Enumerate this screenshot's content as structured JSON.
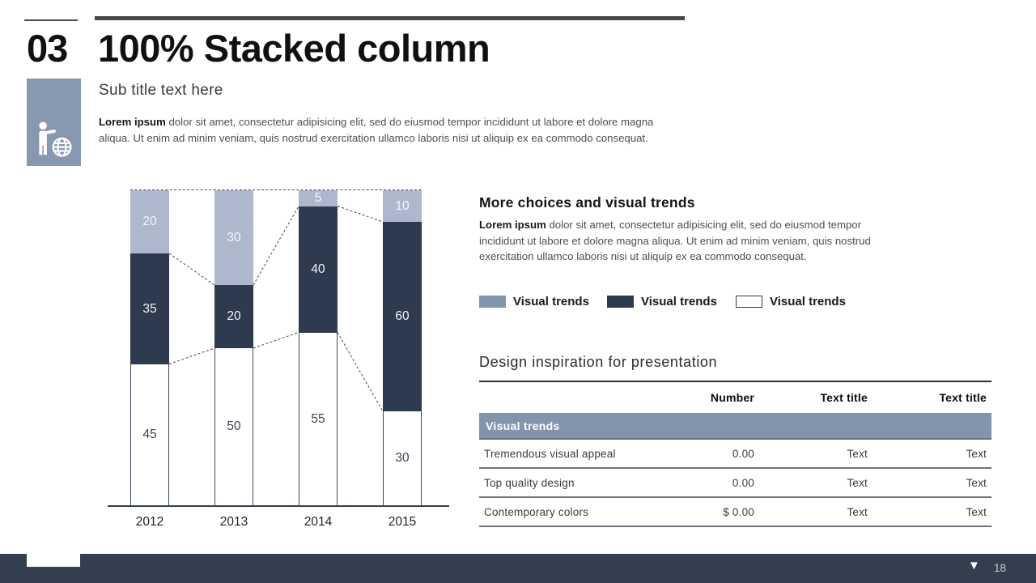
{
  "slide": {
    "number": "03",
    "title": "100% Stacked column",
    "subtitle": "Sub title text here",
    "intro_lead": "Lorem ipsum",
    "intro_text": " dolor sit amet, consectetur adipisicing elit, sed do eiusmod tempor incididunt ut labore et dolore magna aliqua. Ut enim ad minim veniam, quis nostrud exercitation ullamco laboris nisi ut aliquip ex ea commodo consequat.",
    "icon_box_color": "#8797af"
  },
  "right": {
    "section1_title": "More choices and visual trends",
    "section1_lead": "Lorem ipsum",
    "section1_text": " dolor sit amet, consectetur adipisicing elit, sed do eiusmod tempor incididunt ut labore et dolore magna aliqua. Ut enim ad minim veniam, quis nostrud exercitation ullamco laboris nisi ut aliquip ex ea commodo consequat.",
    "legend": [
      {
        "label": "Visual trends",
        "color": "#8295ac"
      },
      {
        "label": "Visual trends",
        "color": "#2e3a4d"
      },
      {
        "label": "Visual trends",
        "color": "#ffffff",
        "border": "#2e3a4d"
      }
    ],
    "section2_title": "Design inspiration for presentation",
    "table": {
      "headers": [
        "",
        "Number",
        "Text title",
        "Text title"
      ],
      "band_label": "Visual trends",
      "band_color": "#8295ac",
      "rows": [
        [
          "Tremendous visual appeal",
          "0.00",
          "Text",
          "Text"
        ],
        [
          "Top quality design",
          "0.00",
          "Text",
          "Text"
        ],
        [
          "Contemporary colors",
          "$ 0.00",
          "Text",
          "Text"
        ]
      ]
    }
  },
  "chart_data": {
    "type": "bar",
    "subtype": "100-percent-stacked-column",
    "title": "",
    "xlabel": "",
    "ylabel": "",
    "ylim": [
      0,
      100
    ],
    "grid": false,
    "series_lines": true,
    "categories": [
      "2012",
      "2013",
      "2014",
      "2015"
    ],
    "series_order": "top-to-bottom",
    "series": [
      {
        "name": "Visual trends (light)",
        "color": "#adb8cd",
        "values": [
          20,
          30,
          5,
          10
        ]
      },
      {
        "name": "Visual trends (dark)",
        "color": "#2e3a4d",
        "values": [
          35,
          20,
          40,
          60
        ]
      },
      {
        "name": "Visual trends (white)",
        "color": "#ffffff",
        "values": [
          45,
          50,
          55,
          30
        ]
      }
    ]
  },
  "footer": {
    "page_number": "18",
    "nav_icon": "▼",
    "bar_color": "#333e4f"
  }
}
